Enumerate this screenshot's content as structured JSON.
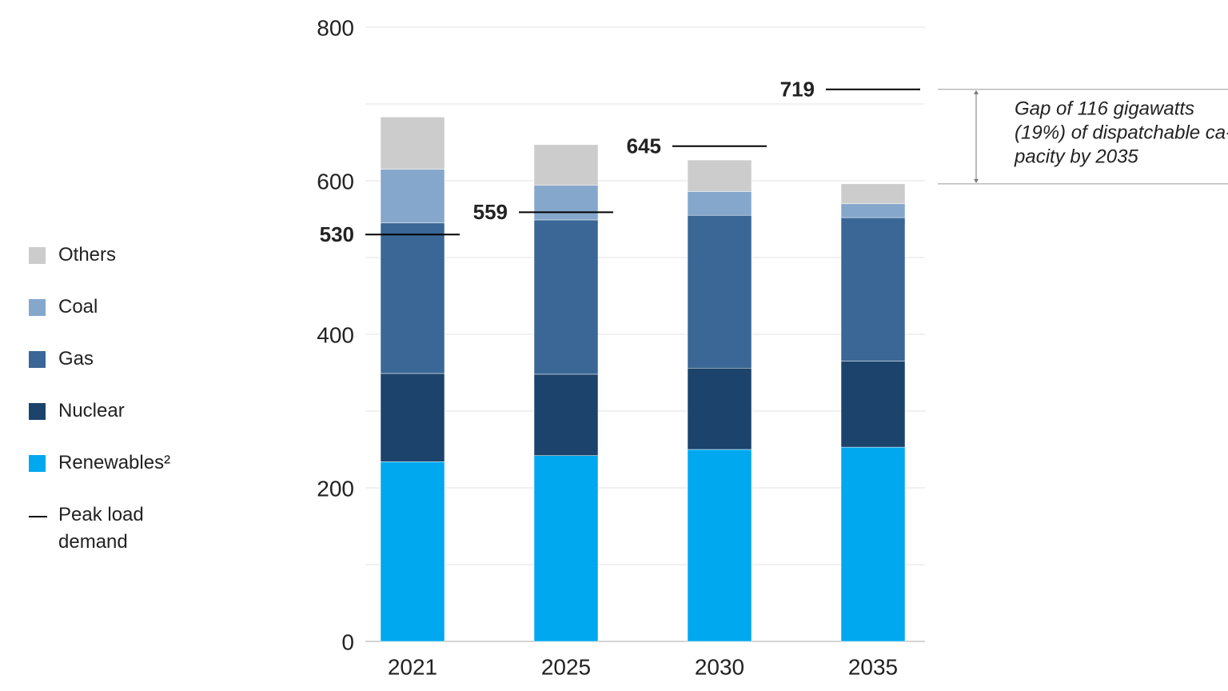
{
  "chart_data": {
    "type": "bar",
    "stacked": true,
    "categories": [
      "2021",
      "2025",
      "2030",
      "2035"
    ],
    "series": [
      {
        "name": "Renewables²",
        "color": "#00a8f0",
        "values": [
          234,
          242,
          250,
          253
        ]
      },
      {
        "name": "Nuclear",
        "color": "#1c436c",
        "values": [
          115,
          106,
          106,
          112
        ]
      },
      {
        "name": "Gas",
        "color": "#3a6795",
        "values": [
          196,
          201,
          199,
          187
        ]
      },
      {
        "name": "Coal",
        "color": "#85a7cb",
        "values": [
          70,
          45,
          31,
          18
        ]
      },
      {
        "name": "Others",
        "color": "#cccccc",
        "values": [
          68,
          53,
          41,
          26
        ]
      }
    ],
    "peak_load": {
      "name": "Peak load demand",
      "color": "#000000",
      "values": [
        530,
        559,
        645,
        719
      ]
    },
    "annotation": [
      "Gap of 116 gigawatts",
      "(19%) of dispatchable ca-",
      "pacity by 2035"
    ],
    "ylim": [
      0,
      800
    ],
    "yticks": [
      0,
      200,
      400,
      600,
      800
    ],
    "minor_yticks": [
      100,
      300,
      500,
      700
    ],
    "grid": true
  }
}
